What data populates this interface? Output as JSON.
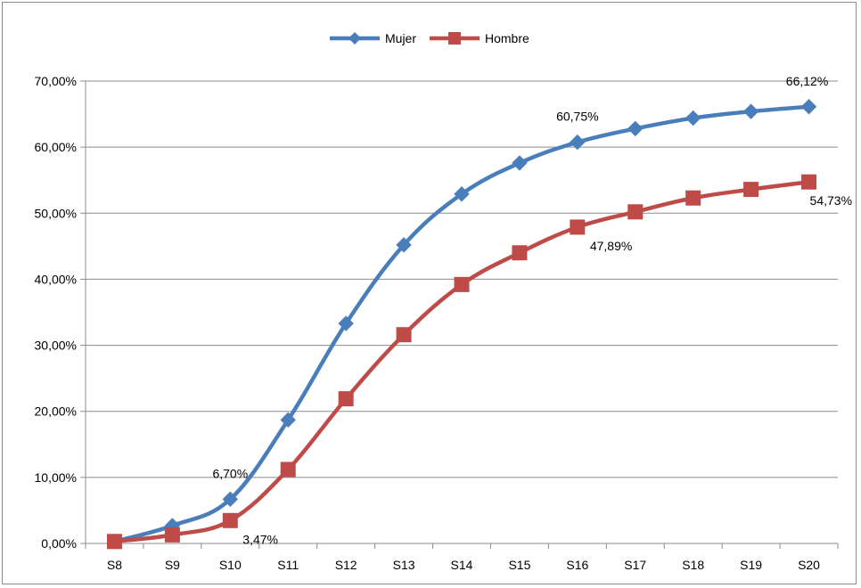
{
  "chart_data": {
    "type": "line",
    "title": "",
    "xlabel": "",
    "ylabel": "",
    "categories": [
      "S8",
      "S9",
      "S10",
      "S11",
      "S12",
      "S13",
      "S14",
      "S15",
      "S16",
      "S17",
      "S18",
      "S19",
      "S20"
    ],
    "ylim": [
      0,
      70
    ],
    "yticks": [
      0,
      10,
      20,
      30,
      40,
      50,
      60,
      70
    ],
    "ytick_labels": [
      "0,00%",
      "10,00%",
      "20,00%",
      "30,00%",
      "40,00%",
      "50,00%",
      "60,00%",
      "70,00%"
    ],
    "grid": "horizontal",
    "legend_position": "top-center",
    "series": [
      {
        "name": "Mujer",
        "color": "#4a7ebb",
        "marker": "diamond",
        "values": [
          0.3,
          2.7,
          6.7,
          18.7,
          33.3,
          45.2,
          52.9,
          57.6,
          60.75,
          62.8,
          64.4,
          65.4,
          66.12
        ],
        "data_labels": [
          {
            "index": 2,
            "text": "6,70%",
            "position": "above"
          },
          {
            "index": 8,
            "text": "60,75%",
            "position": "above"
          },
          {
            "index": 12,
            "text": "66,12%",
            "position": "above"
          }
        ]
      },
      {
        "name": "Hombre",
        "color": "#be4b48",
        "marker": "square",
        "values": [
          0.3,
          1.3,
          3.47,
          11.2,
          21.9,
          31.6,
          39.2,
          44.0,
          47.89,
          50.2,
          52.3,
          53.6,
          54.73
        ],
        "data_labels": [
          {
            "index": 2,
            "text": "3,47%",
            "position": "below-right"
          },
          {
            "index": 8,
            "text": "47,89%",
            "position": "below-right"
          },
          {
            "index": 12,
            "text": "54,73%",
            "position": "below-right"
          }
        ]
      }
    ]
  }
}
